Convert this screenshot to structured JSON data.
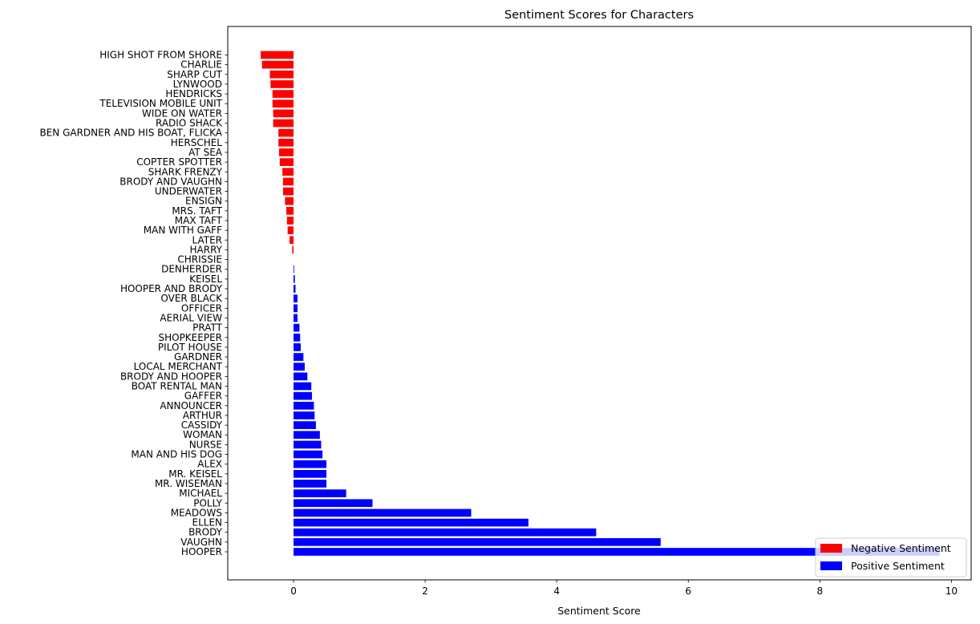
{
  "chart_data": {
    "type": "bar",
    "orientation": "horizontal",
    "title": "Sentiment Scores for Characters",
    "xlabel": "Sentiment Score",
    "ylabel": "",
    "xlim": [
      -1.0,
      10.3
    ],
    "x_ticks": [
      0,
      2,
      4,
      6,
      8,
      10
    ],
    "grid": false,
    "legend_position": "lower-right",
    "series": [
      {
        "name": "Negative Sentiment",
        "color": "#ff0000"
      },
      {
        "name": "Positive Sentiment",
        "color": "#0000ff"
      }
    ],
    "categories": [
      "HIGH SHOT FROM SHORE",
      "CHARLIE",
      "SHARP CUT",
      "LYNWOOD",
      "HENDRICKS",
      "TELEVISION MOBILE UNIT",
      "WIDE ON WATER",
      "RADIO SHACK",
      "BEN GARDNER AND HIS BOAT, FLICKA",
      "HERSCHEL",
      "AT SEA",
      "COPTER SPOTTER",
      "SHARK FRENZY",
      "BRODY AND VAUGHN",
      "UNDERWATER",
      "ENSIGN",
      "MRS. TAFT",
      "MAX TAFT",
      "MAN WITH GAFF",
      "LATER",
      "HARRY",
      "CHRISSIE",
      "DENHERDER",
      "KEISEL",
      "HOOPER AND BRODY",
      "OVER BLACK",
      "OFFICER",
      "AERIAL VIEW",
      "PRATT",
      "SHOPKEEPER",
      "PILOT HOUSE",
      "GARDNER",
      "LOCAL MERCHANT",
      "BRODY AND HOOPER",
      "BOAT RENTAL MAN",
      "GAFFER",
      "ANNOUNCER",
      "ARTHUR",
      "CASSIDY",
      "WOMAN",
      "NURSE",
      "MAN AND HIS DOG",
      "ALEX",
      "MR. KEISEL",
      "MR. WISEMAN",
      "MICHAEL",
      "POLLY",
      "MEADOWS",
      "ELLEN",
      "BRODY",
      "VAUGHN",
      "HOOPER"
    ],
    "values": [
      -0.5,
      -0.48,
      -0.36,
      -0.35,
      -0.32,
      -0.32,
      -0.31,
      -0.31,
      -0.23,
      -0.23,
      -0.22,
      -0.21,
      -0.17,
      -0.16,
      -0.16,
      -0.13,
      -0.11,
      -0.1,
      -0.09,
      -0.06,
      -0.02,
      0.0,
      0.01,
      0.02,
      0.03,
      0.06,
      0.06,
      0.06,
      0.09,
      0.1,
      0.11,
      0.15,
      0.17,
      0.21,
      0.27,
      0.28,
      0.31,
      0.32,
      0.34,
      0.4,
      0.42,
      0.44,
      0.5,
      0.5,
      0.5,
      0.8,
      1.2,
      2.7,
      3.57,
      4.6,
      5.58,
      9.82
    ]
  }
}
